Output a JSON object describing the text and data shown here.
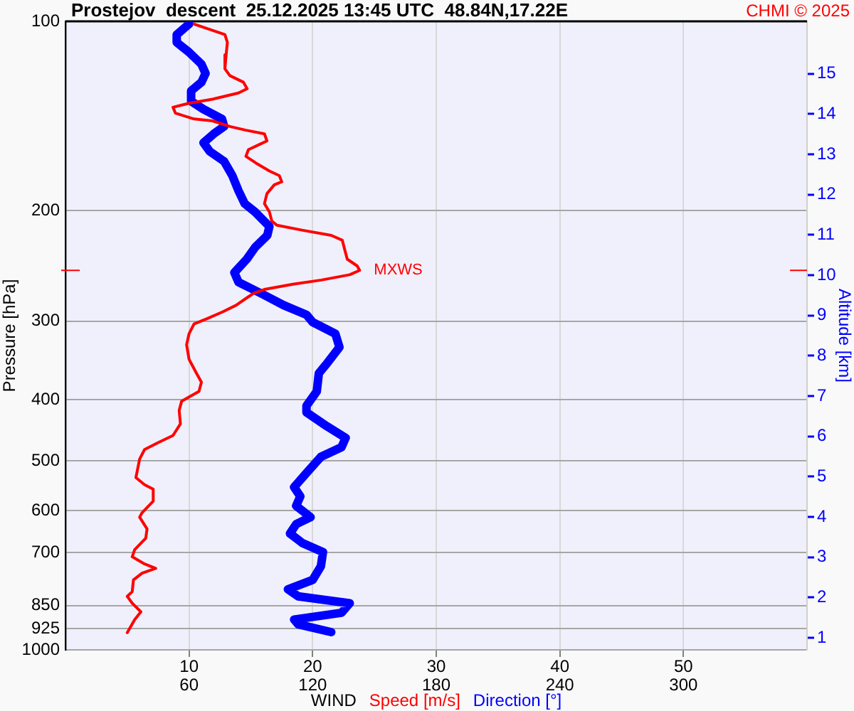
{
  "chart_data": {
    "type": "line",
    "orientation": "horizontal",
    "title": "Prostejov  descent  25.12.2025 13:45 UTC  48.84N,17.22E",
    "xlabel": "WIND",
    "ylabel": "Pressure [hPa]",
    "y2label": "Altitude [km]",
    "series": [
      {
        "name": "Speed [m/s]",
        "color": "#ff0000",
        "x": [
          101,
          105,
          108,
          113,
          119,
          122,
          125,
          128,
          130,
          133,
          135,
          137,
          140,
          143,
          144,
          147,
          149,
          151,
          155,
          157,
          160,
          164,
          168,
          173,
          176,
          180,
          182,
          188,
          195,
          201,
          208,
          211,
          215,
          219,
          223,
          231,
          239,
          245,
          249,
          253,
          258,
          262,
          267,
          271,
          276,
          283,
          290,
          297,
          303,
          314,
          327,
          345,
          363,
          375,
          388,
          402,
          416,
          437,
          456,
          468,
          480,
          497,
          532,
          546,
          555,
          580,
          605,
          615,
          642,
          664,
          693,
          711,
          730,
          742,
          755,
          774,
          808,
          822,
          843,
          870,
          895,
          939
        ],
        "values": [
          10.4,
          12.9,
          13.1,
          13.0,
          12.9,
          13.3,
          14.4,
          14.7,
          14.0,
          11.9,
          10.0,
          8.7,
          8.9,
          10.4,
          11.9,
          13.3,
          14.6,
          16.1,
          16.3,
          15.7,
          14.8,
          14.6,
          15.4,
          16.5,
          17.3,
          17.5,
          16.9,
          16.3,
          16.1,
          16.5,
          16.7,
          17.1,
          19.2,
          21.5,
          22.4,
          22.6,
          22.8,
          23.6,
          23.8,
          23.0,
          20.7,
          18.4,
          16.1,
          15.2,
          14.6,
          13.8,
          12.7,
          11.5,
          10.4,
          10.0,
          9.8,
          10.0,
          10.6,
          11.0,
          10.8,
          9.4,
          9.2,
          9.3,
          8.7,
          7.5,
          6.4,
          6.0,
          5.7,
          6.4,
          7.1,
          7.1,
          6.2,
          6.0,
          6.6,
          6.5,
          5.6,
          5.4,
          6.4,
          7.3,
          6.2,
          5.5,
          5.4,
          5.0,
          5.4,
          6.1,
          5.6,
          5.0
        ]
      },
      {
        "name": "Direction [°]",
        "color": "#0000ff",
        "axis": "x2",
        "x": [
          101,
          105,
          108,
          112,
          117,
          121,
          125,
          129,
          134,
          138,
          143,
          147,
          151,
          156,
          161,
          167,
          176,
          186,
          195,
          201,
          212,
          219,
          229,
          239,
          251,
          260,
          271,
          283,
          293,
          301,
          314,
          330,
          350,
          363,
          388,
          409,
          419,
          441,
          460,
          476,
          493,
          523,
          551,
          570,
          590,
          615,
          631,
          653,
          676,
          699,
          736,
          774,
          801,
          822,
          843,
          873,
          895,
          911,
          937
        ],
        "values": [
          60,
          54,
          54,
          60,
          66,
          68,
          66,
          61,
          61,
          67,
          76,
          77,
          72,
          67,
          70,
          77,
          81,
          84,
          87,
          92,
          99,
          98,
          92,
          88,
          82,
          84,
          95,
          106,
          117,
          120,
          131,
          133,
          127,
          123,
          122,
          117,
          117,
          127,
          136,
          134,
          124,
          117,
          111,
          114,
          112,
          119,
          112,
          109,
          115,
          125,
          124,
          120,
          108,
          113,
          138,
          134,
          111,
          113,
          129
        ]
      }
    ],
    "xlim": [
      0,
      60
    ],
    "xticks": [
      10,
      20,
      30,
      40,
      50
    ],
    "x2lim": [
      0,
      360
    ],
    "x2ticks": [
      60,
      120,
      180,
      240,
      300
    ],
    "ylim": [
      1000,
      100
    ],
    "yticks": [
      100,
      200,
      300,
      400,
      500,
      600,
      700,
      850,
      925,
      1000
    ],
    "log": "y",
    "y2lim": [
      0.7,
      16.3
    ],
    "y2ticks": [
      1,
      2,
      3,
      4,
      5,
      6,
      7,
      8,
      9,
      10,
      11,
      12,
      13,
      14,
      15
    ],
    "annotations": [
      {
        "text": "MXWS",
        "x": 23.8,
        "y": 249
      },
      "CHMI © 2025"
    ],
    "grid": true,
    "legend": "bottom",
    "marker": "none",
    "line_style": "solid"
  }
}
